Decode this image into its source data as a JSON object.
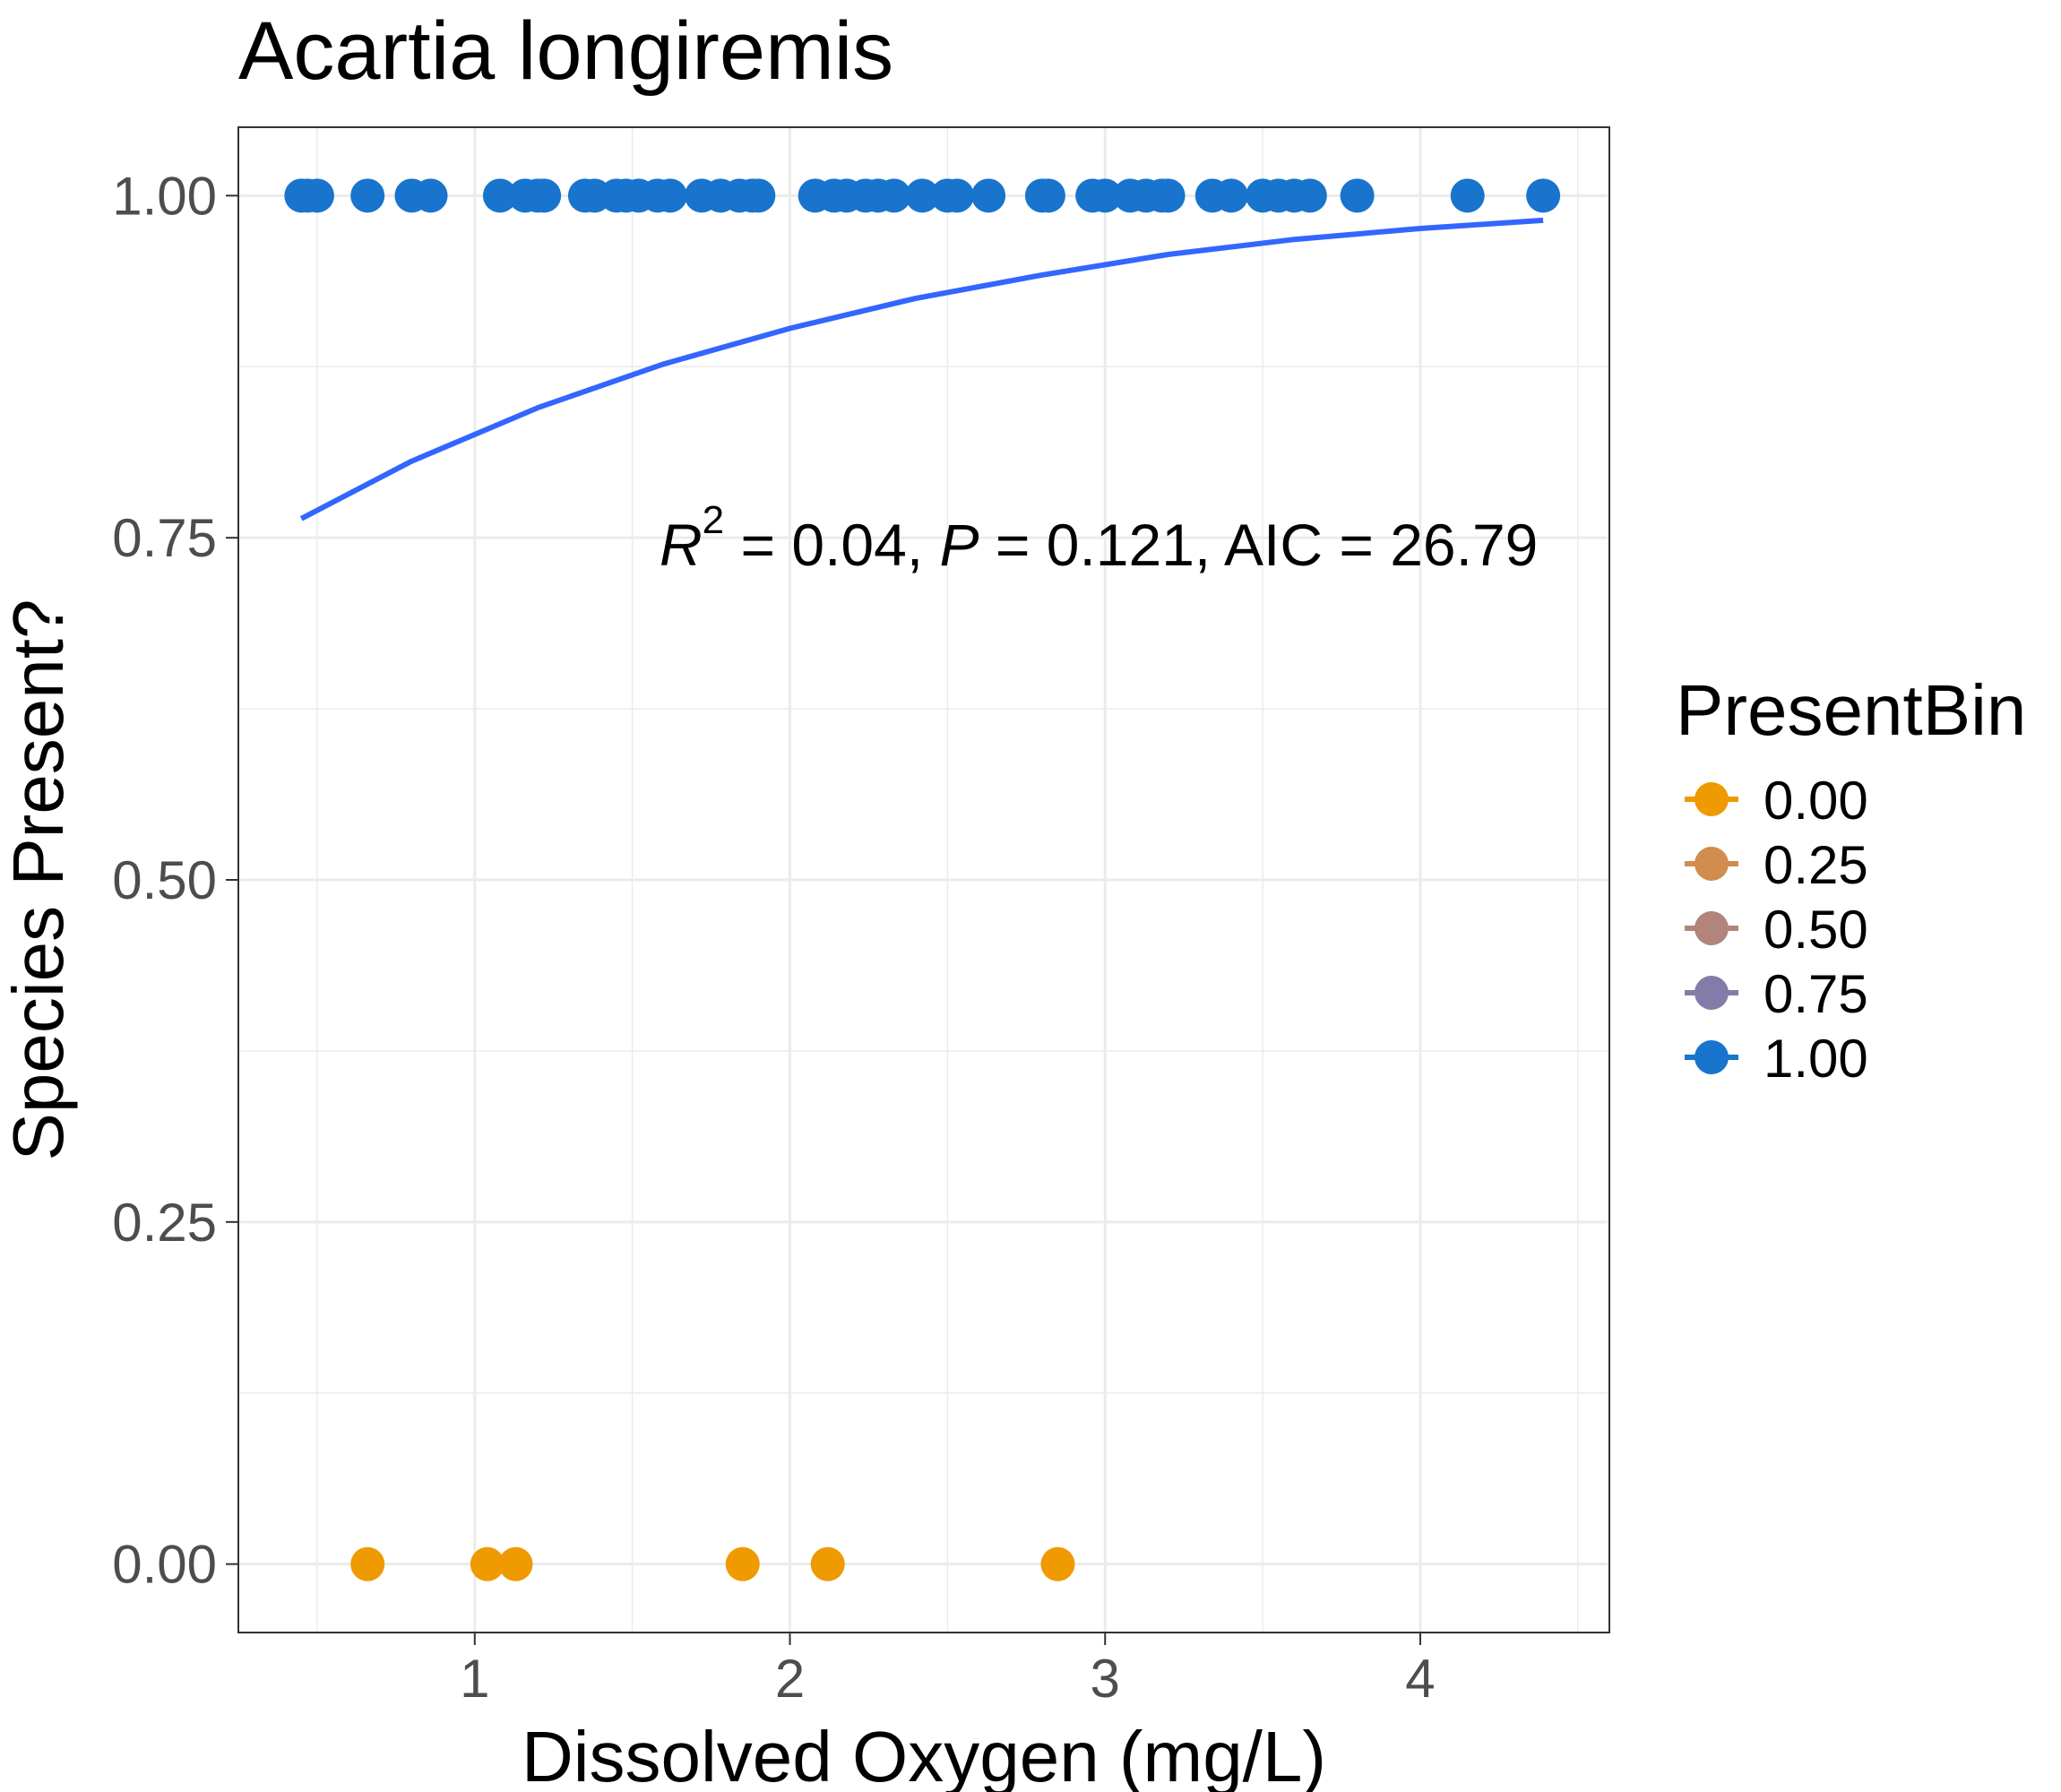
{
  "chart_data": {
    "type": "scatter",
    "title": "Acartia longiremis",
    "xlabel": "Dissolved Oxygen (mg/L)",
    "ylabel": "Species Present?",
    "xlim": [
      0.25,
      4.6
    ],
    "ylim": [
      -0.05,
      1.05
    ],
    "x_ticks": [
      1,
      2,
      3,
      4
    ],
    "x_tick_labels": [
      "1",
      "2",
      "3",
      "4"
    ],
    "y_ticks": [
      0,
      0.25,
      0.5,
      0.75,
      1
    ],
    "y_tick_labels": [
      "0.00",
      "0.25",
      "0.50",
      "0.75",
      "1.00"
    ],
    "grid": true,
    "legend": {
      "title": "PresentBin",
      "placement": "right",
      "entries": [
        {
          "label": "0.00",
          "color": "#EE9A00"
        },
        {
          "label": "0.25",
          "color": "#D08D4E"
        },
        {
          "label": "0.50",
          "color": "#B1857C"
        },
        {
          "label": "0.75",
          "color": "#827CA9"
        },
        {
          "label": "1.00",
          "color": "#1874CD"
        }
      ]
    },
    "annotation": {
      "r_symbol": "R",
      "r_exp": "2",
      "r_value": " = 0.04, ",
      "p_symbol": "P",
      "rest": " = 0.121, AIC = 26.79"
    },
    "series": [
      {
        "bin": 1.0,
        "color": "#1874CD",
        "points": [
          [
            0.45,
            1
          ],
          [
            0.47,
            1
          ],
          [
            0.5,
            1
          ],
          [
            0.66,
            1
          ],
          [
            0.8,
            1
          ],
          [
            0.86,
            1
          ],
          [
            1.08,
            1
          ],
          [
            1.16,
            1
          ],
          [
            1.2,
            1
          ],
          [
            1.22,
            1
          ],
          [
            1.35,
            1
          ],
          [
            1.38,
            1
          ],
          [
            1.45,
            1
          ],
          [
            1.48,
            1
          ],
          [
            1.52,
            1
          ],
          [
            1.58,
            1
          ],
          [
            1.62,
            1
          ],
          [
            1.72,
            1
          ],
          [
            1.78,
            1
          ],
          [
            1.84,
            1
          ],
          [
            1.88,
            1
          ],
          [
            1.9,
            1
          ],
          [
            2.08,
            1
          ],
          [
            2.14,
            1
          ],
          [
            2.18,
            1
          ],
          [
            2.24,
            1
          ],
          [
            2.28,
            1
          ],
          [
            2.33,
            1
          ],
          [
            2.42,
            1
          ],
          [
            2.5,
            1
          ],
          [
            2.53,
            1
          ],
          [
            2.63,
            1
          ],
          [
            2.8,
            1
          ],
          [
            2.82,
            1
          ],
          [
            2.96,
            1
          ],
          [
            3.0,
            1
          ],
          [
            3.08,
            1
          ],
          [
            3.13,
            1
          ],
          [
            3.18,
            1
          ],
          [
            3.2,
            1
          ],
          [
            3.34,
            1
          ],
          [
            3.4,
            1
          ],
          [
            3.5,
            1
          ],
          [
            3.55,
            1
          ],
          [
            3.6,
            1
          ],
          [
            3.65,
            1
          ],
          [
            3.8,
            1
          ],
          [
            4.15,
            1
          ],
          [
            4.39,
            1
          ]
        ]
      },
      {
        "bin": 0.0,
        "color": "#EE9A00",
        "points": [
          [
            0.66,
            0
          ],
          [
            1.04,
            0
          ],
          [
            1.13,
            0
          ],
          [
            1.85,
            0
          ],
          [
            2.12,
            0
          ],
          [
            2.85,
            0
          ]
        ]
      }
    ],
    "fit_curve": {
      "type": "logistic",
      "color": "#3366FF",
      "x_range": [
        0.45,
        4.39
      ],
      "points": [
        [
          0.45,
          0.764
        ],
        [
          0.8,
          0.806
        ],
        [
          1.2,
          0.845
        ],
        [
          1.6,
          0.877
        ],
        [
          2.0,
          0.903
        ],
        [
          2.4,
          0.925
        ],
        [
          2.8,
          0.942
        ],
        [
          3.2,
          0.957
        ],
        [
          3.6,
          0.968
        ],
        [
          4.0,
          0.976
        ],
        [
          4.39,
          0.982
        ]
      ]
    }
  }
}
